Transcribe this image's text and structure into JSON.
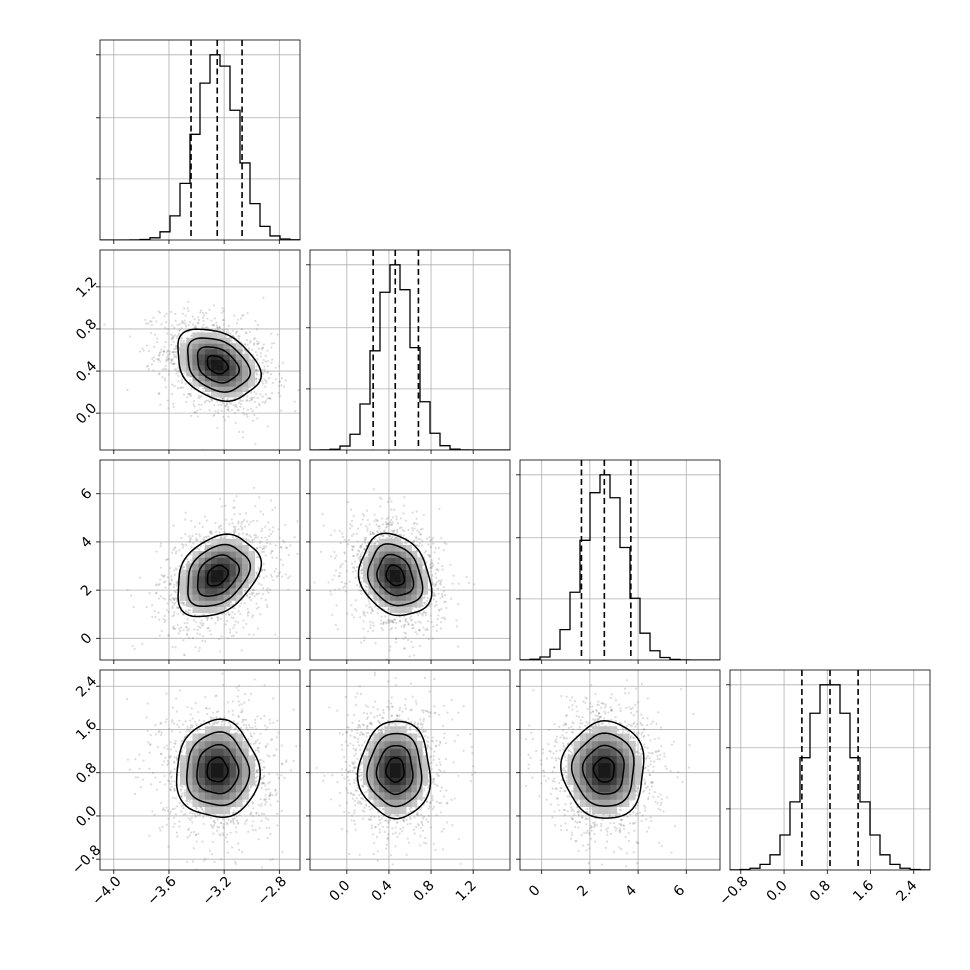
{
  "chart_data": {
    "type": "corner",
    "title": "",
    "grid": true,
    "colors": {
      "samples": "#808080",
      "lines": "#000000",
      "grid": "#b0b0b0"
    },
    "parameters": [
      {
        "index": 0,
        "median": -3.25,
        "quantiles": [
          -3.44,
          -3.25,
          -3.07
        ],
        "std": 0.15,
        "range": [
          -4.1,
          -2.65
        ],
        "ticks": [
          -4.0,
          -3.6,
          -3.2,
          -2.8
        ],
        "tick_labels": [
          "−4.0",
          "−3.6",
          "−3.2",
          "−2.8"
        ]
      },
      {
        "index": 1,
        "median": 0.46,
        "quantiles": [
          0.25,
          0.46,
          0.68
        ],
        "std": 0.17,
        "range": [
          -0.35,
          1.55
        ],
        "ticks": [
          0.0,
          0.4,
          0.8,
          1.2
        ],
        "tick_labels": [
          "0.0",
          "0.4",
          "0.8",
          "1.2"
        ]
      },
      {
        "index": 2,
        "median": 2.6,
        "quantiles": [
          1.65,
          2.6,
          3.7
        ],
        "std": 0.85,
        "range": [
          -0.9,
          7.4
        ],
        "ticks": [
          0,
          2,
          4,
          6
        ],
        "tick_labels": [
          "0",
          "2",
          "4",
          "6"
        ]
      },
      {
        "index": 3,
        "median": 0.85,
        "quantiles": [
          0.33,
          0.85,
          1.37
        ],
        "std": 0.45,
        "range": [
          -1.0,
          2.7
        ],
        "ticks": [
          -0.8,
          0.0,
          0.8,
          1.6,
          2.4
        ],
        "tick_labels": [
          "−0.8",
          "0.0",
          "0.8",
          "1.6",
          "2.4"
        ]
      }
    ],
    "correlations": [
      {
        "x": 0,
        "y": 1,
        "rho": -0.3
      },
      {
        "x": 0,
        "y": 2,
        "rho": 0.3
      },
      {
        "x": 1,
        "y": 2,
        "rho": -0.2
      },
      {
        "x": 0,
        "y": 3,
        "rho": 0.0
      },
      {
        "x": 1,
        "y": 3,
        "rho": 0.0
      },
      {
        "x": 2,
        "y": 3,
        "rho": 0.0
      }
    ],
    "contour_levels_sigma": [
      0.5,
      1.0,
      1.5,
      2.0
    ],
    "histogram_bins": 20,
    "samples_per_panel": 1400
  }
}
